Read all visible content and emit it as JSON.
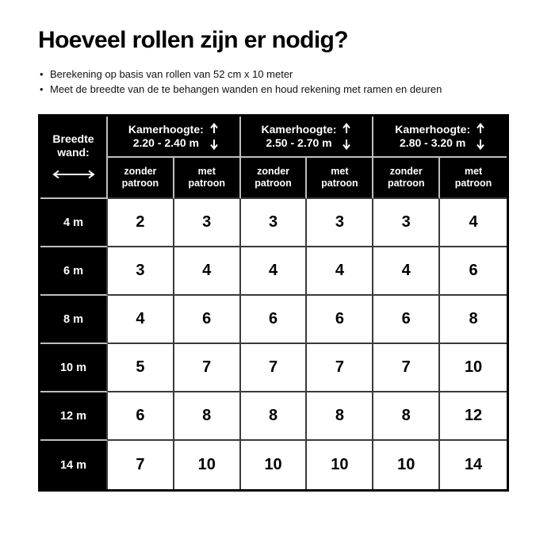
{
  "header": {
    "title": "Hoeveel rollen zijn er nodig?",
    "bullets": [
      "Berekening op basis van rollen van 52 cm x 10 meter",
      "Meet de breedte van de te behangen wanden en houd rekening met ramen en deuren"
    ]
  },
  "table": {
    "corner": {
      "line1": "Breedte",
      "line2": "wand:"
    },
    "groups": [
      {
        "label": "Kamerhoogte:",
        "range": "2.20 - 2.40 m"
      },
      {
        "label": "Kamerhoogte:",
        "range": "2.50 - 2.70 m"
      },
      {
        "label": "Kamerhoogte:",
        "range": "2.80 - 3.20 m"
      }
    ],
    "sub_labels": [
      {
        "line1": "zonder",
        "line2": "patroon"
      },
      {
        "line1": "met",
        "line2": "patroon"
      }
    ]
  },
  "icons": {
    "group_arrow": "vertical-double-arrow",
    "corner_arrow": "horizontal-double-arrow"
  },
  "colors": {
    "cell_black": "#000000",
    "grid_dark": "#3a3a3a",
    "grid_light_on_black": "#bfbfbf",
    "text_on_black": "#ffffff"
  },
  "chart_data": {
    "type": "table",
    "title": "Hoeveel rollen zijn er nodig?",
    "notes": [
      "Berekening op basis van rollen van 52 cm x 10 meter",
      "Meet de breedte van de te behangen wanden en houd rekening met ramen en deuren"
    ],
    "row_header_label": "Breedte wand:",
    "column_groups": [
      "Kamerhoogte: 2.20 - 2.40 m",
      "Kamerhoogte: 2.50 - 2.70 m",
      "Kamerhoogte: 2.80 - 3.20 m"
    ],
    "sub_columns": [
      "zonder patroon",
      "met patroon"
    ],
    "rows": [
      {
        "label": "4 m",
        "values": [
          2,
          3,
          3,
          3,
          3,
          4
        ]
      },
      {
        "label": "6 m",
        "values": [
          3,
          4,
          4,
          4,
          4,
          6
        ]
      },
      {
        "label": "8 m",
        "values": [
          4,
          6,
          6,
          6,
          6,
          8
        ]
      },
      {
        "label": "10 m",
        "values": [
          5,
          7,
          7,
          7,
          7,
          10
        ]
      },
      {
        "label": "12 m",
        "values": [
          6,
          8,
          8,
          8,
          8,
          12
        ]
      },
      {
        "label": "14 m",
        "values": [
          7,
          10,
          10,
          10,
          10,
          14
        ]
      }
    ]
  }
}
